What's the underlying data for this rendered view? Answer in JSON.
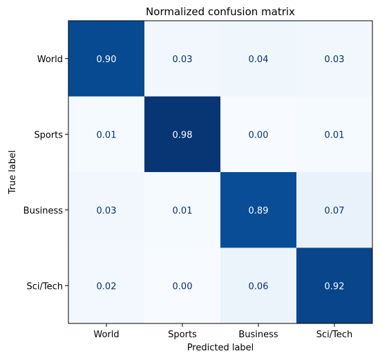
{
  "chart_data": {
    "type": "heatmap",
    "title": "Normalized confusion matrix",
    "xlabel": "Predicted label",
    "ylabel": "True label",
    "x_categories": [
      "World",
      "Sports",
      "Business",
      "Sci/Tech"
    ],
    "y_categories": [
      "World",
      "Sports",
      "Business",
      "Sci/Tech"
    ],
    "values": [
      [
        0.9,
        0.03,
        0.04,
        0.03
      ],
      [
        0.01,
        0.98,
        0.0,
        0.01
      ],
      [
        0.03,
        0.01,
        0.89,
        0.07
      ],
      [
        0.02,
        0.0,
        0.06,
        0.92
      ]
    ],
    "value_range": [
      0,
      1
    ],
    "colormap": "Blues",
    "colormap_stops": [
      "#f7fbff",
      "#deebf7",
      "#c6dbef",
      "#9ecae1",
      "#6baed6",
      "#4292c6",
      "#2171b5",
      "#08519c",
      "#08306b"
    ],
    "text_color_light": "#ffffff",
    "text_color_dark": "#08306b",
    "number_format": "0.00",
    "grid": false,
    "legend": "none"
  }
}
